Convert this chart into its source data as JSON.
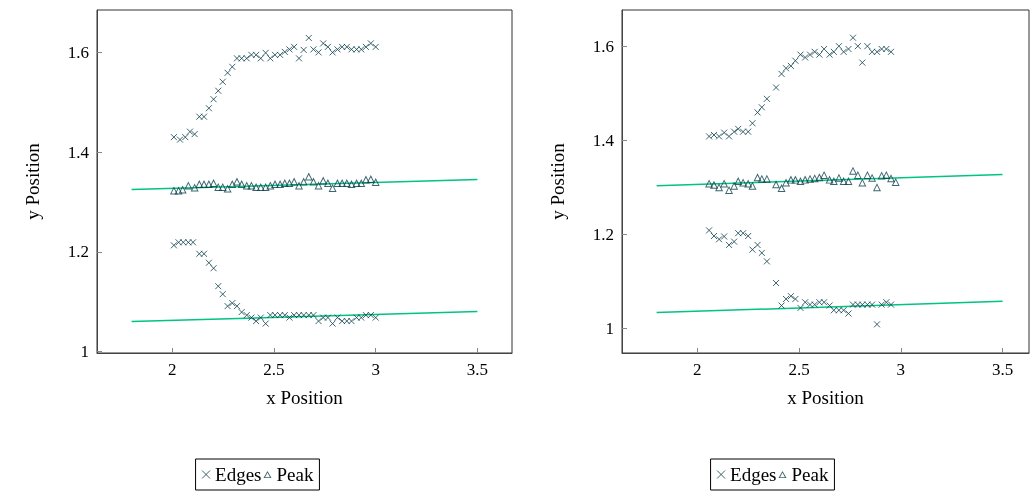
{
  "chart_data": [
    {
      "type": "scatter",
      "xlabel": "x Position",
      "ylabel": "y Position",
      "xlim": [
        1.63,
        3.67
      ],
      "ylim": [
        0.997,
        1.685
      ],
      "xticks": [
        2,
        2.5,
        3,
        3.5
      ],
      "yticks": [
        1,
        1.2,
        1.4,
        1.6
      ],
      "legend": "bottom",
      "series": [
        {
          "name": "Edges",
          "color": "#0d3f4c",
          "marker": "cross",
          "x": [
            2.008,
            2.038,
            2.064,
            2.087,
            2.11,
            2.133,
            2.156,
            2.18,
            2.203,
            2.226,
            2.248,
            2.272,
            2.295,
            2.318,
            2.341,
            2.366,
            2.389,
            2.412,
            2.435,
            2.459,
            2.482,
            2.505,
            2.53,
            2.553,
            2.576,
            2.599,
            2.623,
            2.646,
            2.671,
            2.694,
            2.719,
            2.742,
            2.765,
            2.788,
            2.812,
            2.835,
            2.858,
            2.881,
            2.906,
            2.929,
            2.952,
            2.976,
            3.0,
            2.008,
            2.031,
            2.054,
            2.079,
            2.102,
            2.133,
            2.156,
            2.18,
            2.203,
            2.226,
            2.248,
            2.272,
            2.295,
            2.318,
            2.341,
            2.366,
            2.389,
            2.412,
            2.435,
            2.459,
            2.482,
            2.505,
            2.53,
            2.553,
            2.576,
            2.599,
            2.623,
            2.646,
            2.671,
            2.694,
            2.719,
            2.742,
            2.765,
            2.788,
            2.812,
            2.835,
            2.858,
            2.881,
            2.906,
            2.929,
            2.952,
            2.976,
            3.0
          ],
          "values": [
            1.43,
            1.425,
            1.43,
            1.441,
            1.436,
            1.471,
            1.471,
            1.488,
            1.506,
            1.523,
            1.541,
            1.559,
            1.571,
            1.588,
            1.588,
            1.588,
            1.595,
            1.595,
            1.588,
            1.599,
            1.588,
            1.595,
            1.595,
            1.601,
            1.606,
            1.611,
            1.588,
            1.605,
            1.629,
            1.606,
            1.6,
            1.618,
            1.611,
            1.6,
            1.606,
            1.611,
            1.611,
            1.606,
            1.606,
            1.606,
            1.611,
            1.618,
            1.611,
            1.213,
            1.219,
            1.219,
            1.219,
            1.219,
            1.196,
            1.196,
            1.178,
            1.167,
            1.131,
            1.115,
            1.091,
            1.097,
            1.091,
            1.079,
            1.073,
            1.068,
            1.061,
            1.068,
            1.056,
            1.073,
            1.073,
            1.073,
            1.073,
            1.068,
            1.073,
            1.073,
            1.073,
            1.073,
            1.073,
            1.061,
            1.068,
            1.068,
            1.056,
            1.068,
            1.061,
            1.061,
            1.061,
            1.068,
            1.068,
            1.073,
            1.073,
            1.068
          ]
        },
        {
          "name": "Peak",
          "color": "#0d3f4c",
          "marker": "triangle",
          "x": [
            2.008,
            2.031,
            2.051,
            2.079,
            2.11,
            2.133,
            2.156,
            2.18,
            2.203,
            2.226,
            2.248,
            2.272,
            2.295,
            2.318,
            2.341,
            2.366,
            2.389,
            2.412,
            2.435,
            2.459,
            2.482,
            2.505,
            2.53,
            2.553,
            2.576,
            2.599,
            2.623,
            2.646,
            2.671,
            2.694,
            2.719,
            2.742,
            2.765,
            2.788,
            2.812,
            2.835,
            2.858,
            2.881,
            2.906,
            2.929,
            2.952,
            2.976,
            3.0
          ],
          "values": [
            1.323,
            1.323,
            1.325,
            1.333,
            1.329,
            1.336,
            1.336,
            1.336,
            1.338,
            1.33,
            1.33,
            1.327,
            1.336,
            1.341,
            1.336,
            1.333,
            1.333,
            1.33,
            1.33,
            1.33,
            1.333,
            1.336,
            1.336,
            1.338,
            1.338,
            1.341,
            1.333,
            1.341,
            1.351,
            1.341,
            1.333,
            1.343,
            1.338,
            1.328,
            1.338,
            1.338,
            1.338,
            1.336,
            1.338,
            1.338,
            1.345,
            1.346,
            1.34
          ]
        },
        {
          "type": "line",
          "color": "#00c480",
          "marker": "none",
          "x": [
            1.8,
            3.5
          ],
          "values": [
            1.325,
            1.345
          ]
        },
        {
          "type": "line",
          "color": "#00c480",
          "marker": "none",
          "x": [
            1.8,
            3.5
          ],
          "values": [
            1.06,
            1.08
          ]
        }
      ]
    },
    {
      "type": "scatter",
      "xlabel": "x Position",
      "ylabel": "y Position",
      "xlim": [
        1.63,
        3.63
      ],
      "ylim": [
        0.947,
        1.677
      ],
      "xticks": [
        2,
        2.5,
        3,
        3.5
      ],
      "yticks": [
        1,
        1.2,
        1.4,
        1.6
      ],
      "legend": "bottom",
      "series": [
        {
          "name": "Edges",
          "color": "#0d3f4c",
          "marker": "cross",
          "x": [
            2.058,
            2.082,
            2.107,
            2.132,
            2.156,
            2.181,
            2.201,
            2.225,
            2.25,
            2.271,
            2.296,
            2.317,
            2.342,
            2.387,
            2.414,
            2.436,
            2.46,
            2.482,
            2.507,
            2.53,
            2.554,
            2.577,
            2.6,
            2.623,
            2.65,
            2.671,
            2.696,
            2.719,
            2.743,
            2.765,
            2.789,
            2.811,
            2.836,
            2.859,
            2.883,
            2.906,
            2.929,
            2.952,
            2.058,
            2.082,
            2.107,
            2.132,
            2.156,
            2.181,
            2.201,
            2.225,
            2.25,
            2.271,
            2.296,
            2.317,
            2.342,
            2.387,
            2.414,
            2.436,
            2.46,
            2.482,
            2.507,
            2.53,
            2.554,
            2.577,
            2.6,
            2.623,
            2.65,
            2.671,
            2.696,
            2.719,
            2.743,
            2.765,
            2.789,
            2.811,
            2.836,
            2.859,
            2.883,
            2.906,
            2.929,
            2.952
          ],
          "values": [
            1.408,
            1.411,
            1.408,
            1.416,
            1.408,
            1.418,
            1.424,
            1.418,
            1.418,
            1.436,
            1.459,
            1.47,
            1.488,
            1.512,
            1.541,
            1.553,
            1.558,
            1.569,
            1.582,
            1.576,
            1.582,
            1.588,
            1.582,
            1.594,
            1.582,
            1.588,
            1.6,
            1.588,
            1.594,
            1.618,
            1.6,
            1.565,
            1.6,
            1.588,
            1.588,
            1.594,
            1.594,
            1.588,
            1.208,
            1.196,
            1.189,
            1.195,
            1.177,
            1.184,
            1.202,
            1.202,
            1.196,
            1.167,
            1.177,
            1.16,
            1.142,
            1.096,
            1.048,
            1.062,
            1.068,
            1.062,
            1.043,
            1.055,
            1.05,
            1.05,
            1.055,
            1.055,
            1.048,
            1.038,
            1.038,
            1.038,
            1.031,
            1.05,
            1.05,
            1.05,
            1.05,
            1.05,
            1.008,
            1.05,
            1.055,
            1.05
          ]
        },
        {
          "name": "Peak",
          "color": "#0d3f4c",
          "marker": "triangle",
          "x": [
            2.058,
            2.082,
            2.107,
            2.132,
            2.156,
            2.181,
            2.201,
            2.225,
            2.25,
            2.271,
            2.296,
            2.317,
            2.342,
            2.387,
            2.414,
            2.436,
            2.46,
            2.482,
            2.507,
            2.53,
            2.554,
            2.577,
            2.6,
            2.623,
            2.65,
            2.671,
            2.696,
            2.719,
            2.743,
            2.765,
            2.789,
            2.811,
            2.836,
            2.859,
            2.883,
            2.906,
            2.929,
            2.952,
            2.975
          ],
          "values": [
            1.308,
            1.305,
            1.3,
            1.308,
            1.294,
            1.303,
            1.313,
            1.31,
            1.308,
            1.303,
            1.321,
            1.318,
            1.318,
            1.306,
            1.298,
            1.31,
            1.316,
            1.316,
            1.313,
            1.316,
            1.318,
            1.319,
            1.321,
            1.326,
            1.316,
            1.313,
            1.32,
            1.313,
            1.313,
            1.335,
            1.326,
            1.31,
            1.326,
            1.32,
            1.3,
            1.325,
            1.326,
            1.319,
            1.311
          ]
        },
        {
          "type": "line",
          "color": "#00c480",
          "marker": "none",
          "x": [
            1.8,
            3.5
          ],
          "values": [
            1.303,
            1.327
          ]
        },
        {
          "type": "line",
          "color": "#00c480",
          "marker": "none",
          "x": [
            1.8,
            3.5
          ],
          "values": [
            1.033,
            1.057
          ]
        }
      ]
    }
  ]
}
